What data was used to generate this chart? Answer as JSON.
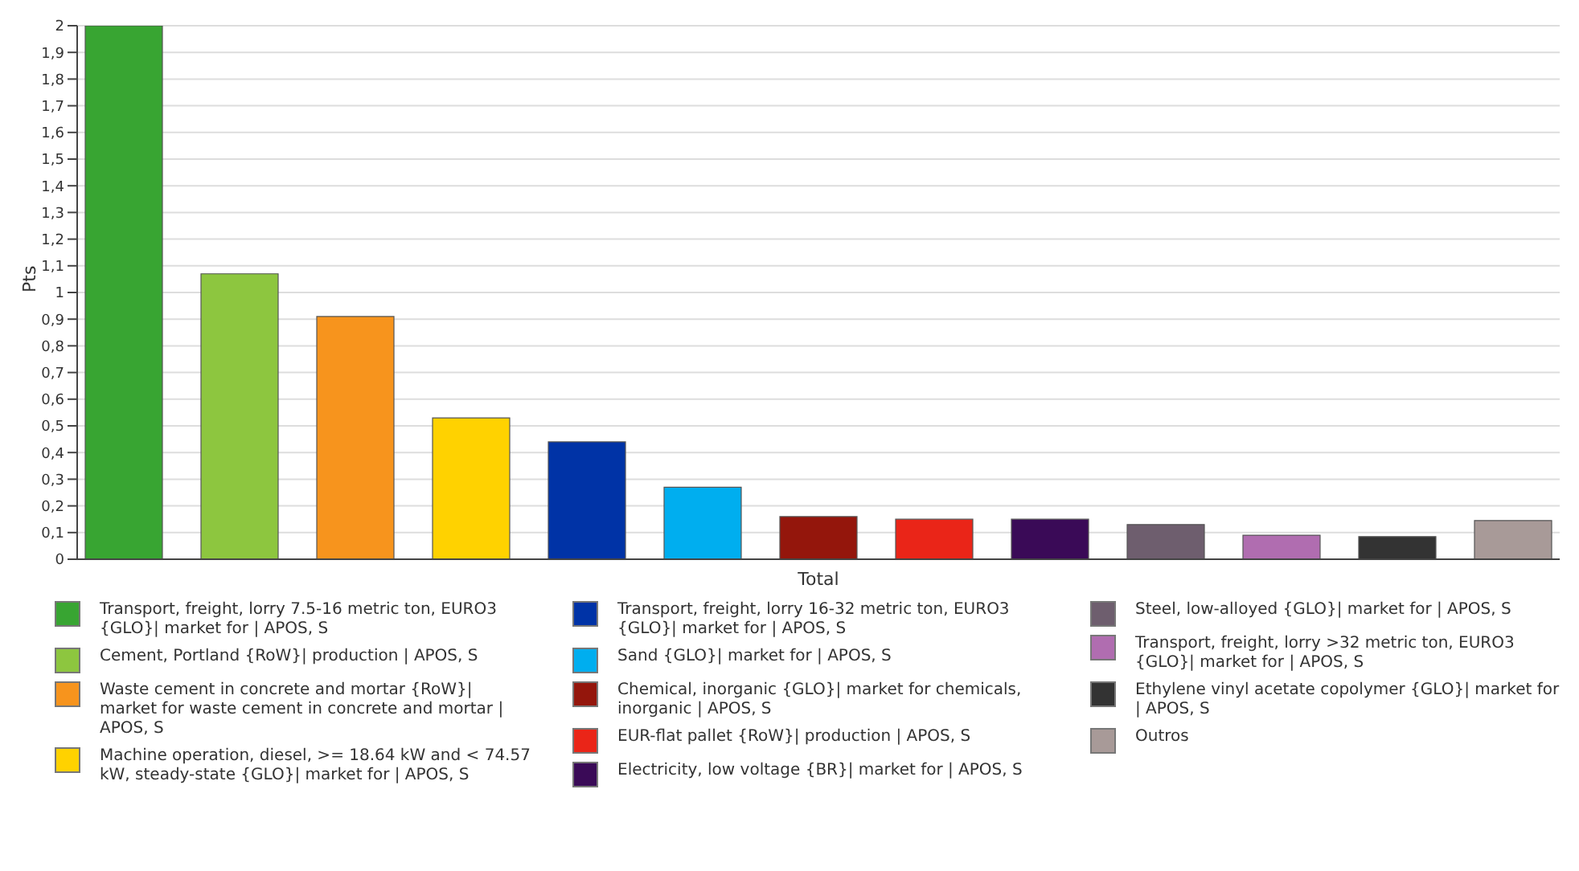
{
  "chart_data": {
    "type": "bar",
    "ylabel": "Pts",
    "categories": [
      "Total"
    ],
    "series": [
      {
        "name": "Transport, freight, lorry 7.5-16 metric ton, EURO3 {GLO}| market for | APOS, S",
        "color": "#38a532",
        "values": [
          2.0
        ]
      },
      {
        "name": "Cement, Portland {RoW}| production | APOS, S",
        "color": "#8dc63f",
        "values": [
          1.07
        ]
      },
      {
        "name": "Waste cement in concrete and mortar {RoW}| market for waste cement in concrete and mortar | APOS, S",
        "color": "#f7941d",
        "values": [
          0.91
        ]
      },
      {
        "name": "Machine operation, diesel, >= 18.64 kW and < 74.57 kW, steady-state {GLO}| market for | APOS, S",
        "color": "#ffd200",
        "values": [
          0.53
        ]
      },
      {
        "name": "Transport, freight, lorry 16-32 metric ton, EURO3 {GLO}| market for | APOS, S",
        "color": "#0033a6",
        "values": [
          0.44
        ]
      },
      {
        "name": "Sand {GLO}| market for | APOS, S",
        "color": "#00aeef",
        "values": [
          0.27
        ]
      },
      {
        "name": "Chemical, inorganic {GLO}| market for chemicals, inorganic | APOS, S",
        "color": "#94160c",
        "values": [
          0.16
        ]
      },
      {
        "name": "EUR-flat pallet {RoW}| production | APOS, S",
        "color": "#ea2518",
        "values": [
          0.15
        ]
      },
      {
        "name": "Electricity, low voltage {BR}| market for | APOS, S",
        "color": "#3a0a57",
        "values": [
          0.15
        ]
      },
      {
        "name": "Steel, low-alloyed {GLO}| market for | APOS, S",
        "color": "#6e5e6e",
        "values": [
          0.13
        ]
      },
      {
        "name": "Transport, freight, lorry >32 metric ton, EURO3 {GLO}| market for | APOS, S",
        "color": "#b06db0",
        "values": [
          0.09
        ]
      },
      {
        "name": "Ethylene vinyl acetate copolymer {GLO}| market for | APOS, S",
        "color": "#333333",
        "values": [
          0.085
        ]
      },
      {
        "name": "Outros",
        "color": "#a89a98",
        "values": [
          0.145
        ]
      }
    ],
    "ylim": [
      0,
      2
    ],
    "yticks": [
      0,
      {
        "value": 0.1,
        "label": "0,1"
      },
      {
        "value": 0.2,
        "label": "0,2"
      },
      {
        "value": 0.3,
        "label": "0,3"
      },
      {
        "value": 0.4,
        "label": "0,4"
      },
      {
        "value": 0.5,
        "label": "0,5"
      },
      {
        "value": 0.6,
        "label": "0,6"
      },
      {
        "value": 0.7,
        "label": "0,7"
      },
      {
        "value": 0.8,
        "label": "0,8"
      },
      {
        "value": 0.9,
        "label": "0,9"
      },
      1,
      {
        "value": 1.1,
        "label": "1,1"
      },
      {
        "value": 1.2,
        "label": "1,2"
      },
      {
        "value": 1.3,
        "label": "1,3"
      },
      {
        "value": 1.4,
        "label": "1,4"
      },
      {
        "value": 1.5,
        "label": "1,5"
      },
      {
        "value": 1.6,
        "label": "1,6"
      },
      {
        "value": 1.7,
        "label": "1,7"
      },
      {
        "value": 1.8,
        "label": "1,8"
      },
      {
        "value": 1.9,
        "label": "1,9"
      },
      2
    ],
    "grid": "y",
    "legend": "bottom"
  }
}
